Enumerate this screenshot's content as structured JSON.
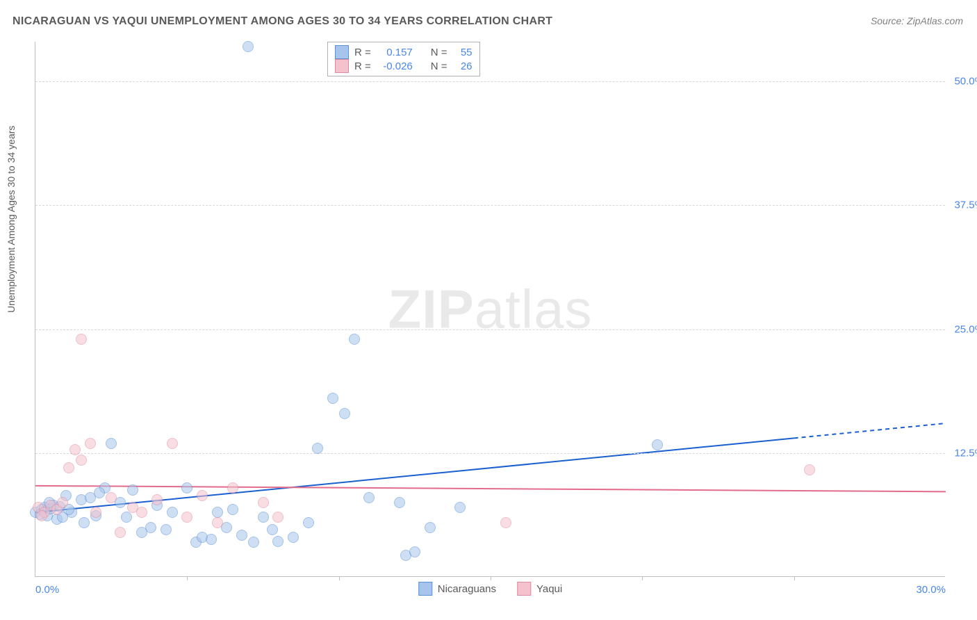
{
  "title": "NICARAGUAN VS YAQUI UNEMPLOYMENT AMONG AGES 30 TO 34 YEARS CORRELATION CHART",
  "source": "Source: ZipAtlas.com",
  "y_axis_label": "Unemployment Among Ages 30 to 34 years",
  "watermark_a": "ZIP",
  "watermark_b": "atlas",
  "chart": {
    "type": "scatter",
    "xlim": [
      0,
      30
    ],
    "ylim": [
      0,
      54
    ],
    "x_ticks": [
      0.0,
      30.0
    ],
    "x_intermediate_ticks": [
      5,
      10,
      15,
      20,
      25
    ],
    "y_ticks": [
      12.5,
      25.0,
      37.5,
      50.0
    ],
    "x_tick_suffix": "%",
    "y_tick_suffix": "%",
    "grid_color": "#d8d8d8",
    "axis_color": "#c0c0c0",
    "background_color": "#ffffff",
    "point_radius": 8,
    "point_opacity": 0.55,
    "series": [
      {
        "name": "Nicaraguans",
        "fill_color": "#a7c5ec",
        "stroke_color": "#5b8fd6",
        "R": "0.157",
        "N": "55",
        "trend": {
          "x1": 0,
          "y1": 6.5,
          "x2": 25,
          "y2": 14.0,
          "x2_ext": 30,
          "y2_ext": 15.5,
          "color": "#1a5fd0",
          "width": 2
        },
        "points": [
          [
            0.0,
            6.5
          ],
          [
            0.2,
            6.8
          ],
          [
            0.3,
            7.0
          ],
          [
            0.4,
            6.2
          ],
          [
            0.5,
            6.9
          ],
          [
            0.6,
            7.2
          ],
          [
            0.7,
            5.8
          ],
          [
            0.8,
            7.1
          ],
          [
            0.9,
            6.0
          ],
          [
            1.0,
            8.2
          ],
          [
            1.2,
            6.5
          ],
          [
            1.5,
            7.8
          ],
          [
            1.8,
            8.0
          ],
          [
            2.0,
            6.2
          ],
          [
            2.3,
            9.0
          ],
          [
            2.5,
            13.5
          ],
          [
            2.8,
            7.5
          ],
          [
            3.0,
            6.0
          ],
          [
            3.2,
            8.8
          ],
          [
            3.5,
            4.5
          ],
          [
            3.8,
            5.0
          ],
          [
            4.0,
            7.2
          ],
          [
            4.3,
            4.8
          ],
          [
            4.5,
            6.5
          ],
          [
            5.0,
            9.0
          ],
          [
            5.3,
            3.5
          ],
          [
            5.5,
            4.0
          ],
          [
            5.8,
            3.8
          ],
          [
            6.0,
            6.5
          ],
          [
            6.3,
            5.0
          ],
          [
            6.5,
            6.8
          ],
          [
            6.8,
            4.2
          ],
          [
            7.0,
            53.5
          ],
          [
            7.2,
            3.5
          ],
          [
            7.5,
            6.0
          ],
          [
            7.8,
            4.8
          ],
          [
            8.0,
            3.6
          ],
          [
            8.5,
            4.0
          ],
          [
            9.0,
            5.5
          ],
          [
            9.3,
            13.0
          ],
          [
            9.8,
            18.0
          ],
          [
            10.2,
            16.5
          ],
          [
            10.5,
            24.0
          ],
          [
            11.0,
            8.0
          ],
          [
            12.0,
            7.5
          ],
          [
            12.2,
            2.2
          ],
          [
            12.5,
            2.5
          ],
          [
            13.0,
            5.0
          ],
          [
            14.0,
            7.0
          ],
          [
            20.5,
            13.3
          ],
          [
            0.15,
            6.3
          ],
          [
            0.45,
            7.5
          ],
          [
            1.1,
            6.8
          ],
          [
            1.6,
            5.5
          ],
          [
            2.1,
            8.5
          ]
        ]
      },
      {
        "name": "Yaqui",
        "fill_color": "#f4c2cd",
        "stroke_color": "#e08aa0",
        "R": "-0.026",
        "N": "26",
        "trend": {
          "x1": 0,
          "y1": 9.2,
          "x2": 30,
          "y2": 8.6,
          "color": "#e36b8b",
          "width": 2
        },
        "points": [
          [
            0.1,
            7.0
          ],
          [
            0.3,
            6.5
          ],
          [
            0.5,
            7.2
          ],
          [
            0.7,
            6.8
          ],
          [
            0.9,
            7.5
          ],
          [
            1.1,
            11.0
          ],
          [
            1.3,
            12.8
          ],
          [
            1.5,
            11.8
          ],
          [
            1.5,
            24.0
          ],
          [
            1.8,
            13.5
          ],
          [
            2.0,
            6.5
          ],
          [
            2.5,
            8.0
          ],
          [
            2.8,
            4.5
          ],
          [
            3.2,
            7.0
          ],
          [
            3.5,
            6.5
          ],
          [
            4.0,
            7.8
          ],
          [
            4.5,
            13.5
          ],
          [
            5.0,
            6.0
          ],
          [
            5.5,
            8.2
          ],
          [
            6.0,
            5.5
          ],
          [
            6.5,
            9.0
          ],
          [
            7.5,
            7.5
          ],
          [
            8.0,
            6.0
          ],
          [
            15.5,
            5.5
          ],
          [
            25.5,
            10.8
          ],
          [
            0.2,
            6.2
          ]
        ]
      }
    ]
  },
  "stats_legend": {
    "r_label": "R =",
    "n_label": "N ="
  }
}
